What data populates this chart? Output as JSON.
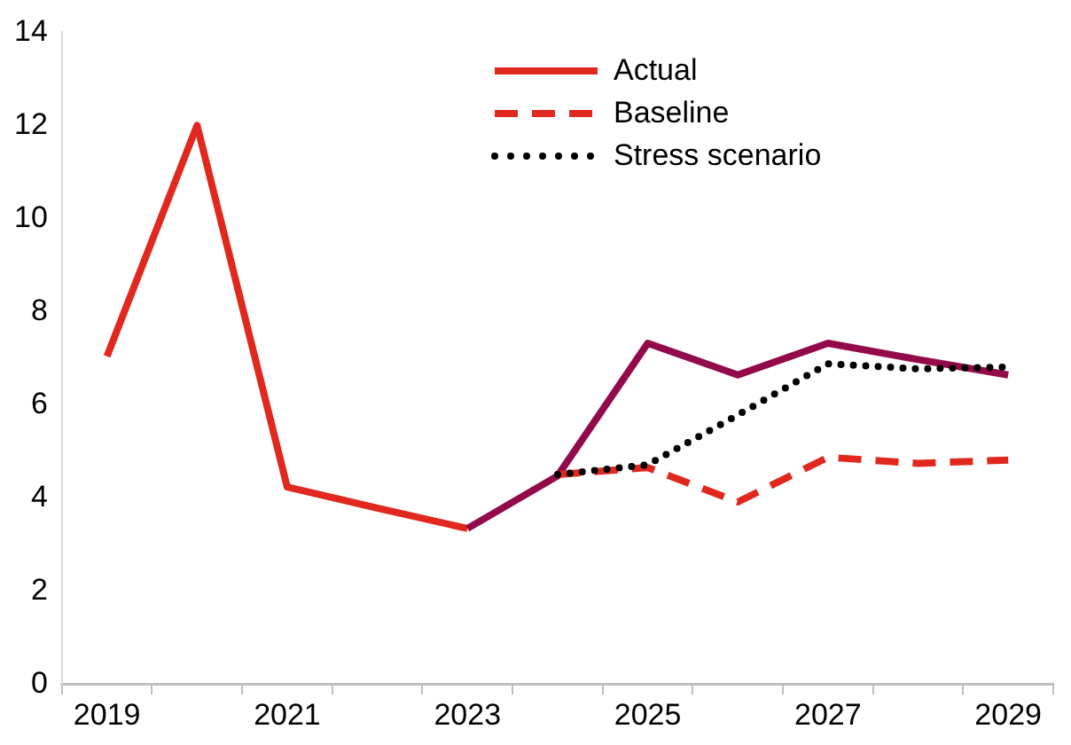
{
  "chart_data": {
    "type": "line",
    "categories": [
      "2019",
      null,
      "2021",
      null,
      "2023",
      null,
      "2025",
      null,
      "2027",
      null,
      "2029"
    ],
    "series": [
      {
        "name": "Actual",
        "color": "#e0281e",
        "line_style": "solid",
        "values": [
          7.04,
          12.0,
          4.23,
          3.78,
          3.34,
          null,
          null,
          null,
          null,
          null,
          null
        ]
      },
      {
        "color": "#930a4a",
        "line_style": "solid",
        "values": [
          null,
          null,
          null,
          null,
          3.34,
          4.47,
          7.32,
          6.64,
          7.32,
          6.97,
          6.64
        ]
      },
      {
        "name": "Baseline",
        "color": "#e0281e",
        "line_style": "dashed",
        "values": [
          null,
          null,
          null,
          null,
          null,
          4.5,
          4.65,
          3.91,
          4.87,
          4.74,
          4.81
        ]
      },
      {
        "name": "Stress scenario",
        "color": "#000000",
        "line_style": "dotted",
        "values": [
          null,
          null,
          null,
          null,
          null,
          4.5,
          4.71,
          5.78,
          6.88,
          6.77,
          6.81
        ]
      }
    ],
    "ylim": [
      0,
      14
    ],
    "yticks": [
      0,
      2,
      4,
      6,
      8,
      10,
      12,
      14
    ],
    "grid": false,
    "legend": "top right",
    "marker": "none"
  }
}
